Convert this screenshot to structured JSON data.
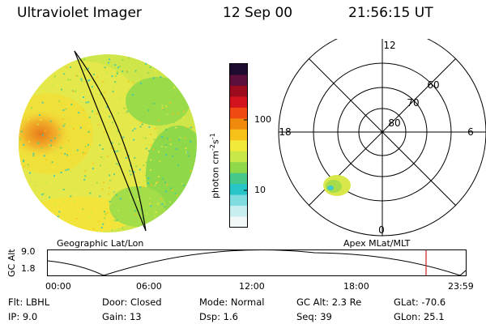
{
  "header": {
    "instrument": "Ultraviolet Imager",
    "date": "12 Sep 00",
    "time": "21:56:15 UT"
  },
  "colorbar": {
    "unit_prefix": "photon cm",
    "unit_exp1": "-2",
    "unit_mid": "s",
    "unit_exp2": "-1",
    "tick_100": "100",
    "tick_10": "10",
    "colors": [
      "#1c0b2e",
      "#5b0f3a",
      "#9c0a1e",
      "#d3141d",
      "#ee4a12",
      "#f08a0c",
      "#f6c21a",
      "#f2ea3a",
      "#c8e84a",
      "#8fd84a",
      "#44c98a",
      "#27c4c8",
      "#7fdde0",
      "#c8eef0",
      "#f2f8f8"
    ]
  },
  "polar": {
    "lat_labels": [
      "80",
      "70",
      "60"
    ],
    "mlt_top": "12",
    "mlt_left": "18",
    "mlt_right": "6",
    "mlt_bottom": "0"
  },
  "labels": {
    "left_projection": "Geographic Lat/Lon",
    "right_projection": "Apex MLat/MLT"
  },
  "timeline": {
    "ylabel": "GC Alt",
    "y_max": "9.0",
    "y_min": "1.8",
    "x_ticks": [
      "00:00",
      "06:00",
      "12:00",
      "18:00",
      "23:59"
    ],
    "marker_time": "21:56"
  },
  "footer": {
    "flt": "Flt: LBHL",
    "ip": "IP:   9.0",
    "door": "Door: Closed",
    "gain": "Gain: 13",
    "mode": "Mode: Normal",
    "dsp": "Dsp:      1.6",
    "gc_alt": "GC Alt: 2.3 Re",
    "seq": "Seq: 39",
    "glat": "GLat: -70.6",
    "glon": "GLon:  25.1"
  }
}
